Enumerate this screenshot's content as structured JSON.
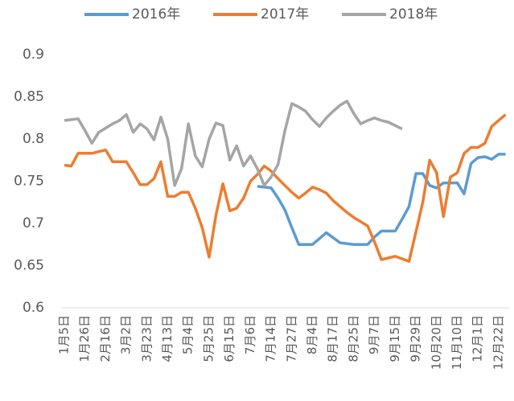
{
  "chart_data": {
    "type": "line",
    "categories": [
      "1月5日",
      null,
      null,
      "1月26日",
      null,
      null,
      "2月16日",
      null,
      null,
      "3月2日",
      null,
      null,
      "3月23日",
      null,
      null,
      "4月13日",
      null,
      null,
      "5月4日",
      null,
      null,
      "5月25日",
      null,
      null,
      "6月15日",
      null,
      null,
      "7月6日",
      null,
      null,
      "7月14日",
      null,
      null,
      "7月27日",
      null,
      null,
      "8月4日",
      null,
      null,
      "8月17日",
      null,
      null,
      "8月25日",
      null,
      null,
      "9月7日",
      null,
      null,
      "9月15日",
      null,
      null,
      "9月29日",
      null,
      null,
      "10月20日",
      null,
      null,
      "11月10日",
      null,
      null,
      "12月1日",
      null,
      null,
      "12月22日",
      null
    ],
    "series": [
      {
        "name": "2016年",
        "color": "#5b9bd5",
        "values": [
          null,
          null,
          null,
          null,
          null,
          null,
          null,
          null,
          null,
          null,
          null,
          null,
          null,
          null,
          null,
          null,
          null,
          null,
          null,
          null,
          null,
          null,
          null,
          null,
          null,
          null,
          null,
          null,
          0.744,
          0.743,
          0.742,
          0.73,
          0.716,
          0.695,
          0.675,
          0.675,
          0.675,
          0.682,
          0.689,
          0.683,
          0.677,
          0.676,
          0.675,
          0.675,
          0.675,
          0.684,
          0.691,
          0.691,
          0.691,
          0.705,
          0.72,
          0.759,
          0.759,
          0.745,
          0.742,
          0.748,
          0.748,
          0.748,
          0.735,
          0.771,
          0.778,
          0.779,
          0.776,
          0.782,
          0.782
        ]
      },
      {
        "name": "2017年",
        "color": "#ed7d31",
        "values": [
          0.769,
          0.768,
          0.783,
          0.783,
          0.783,
          0.785,
          0.787,
          0.773,
          0.773,
          0.773,
          0.76,
          0.746,
          0.746,
          0.753,
          0.773,
          0.732,
          0.732,
          0.737,
          0.737,
          0.718,
          0.695,
          0.66,
          0.71,
          0.747,
          0.715,
          0.718,
          0.73,
          0.75,
          0.758,
          0.768,
          0.762,
          0.753,
          0.745,
          0.737,
          0.73,
          0.736,
          0.743,
          0.74,
          0.736,
          0.727,
          0.72,
          0.713,
          0.707,
          0.702,
          0.697,
          0.678,
          0.657,
          0.659,
          0.661,
          0.658,
          0.655,
          0.69,
          0.725,
          0.775,
          0.76,
          0.708,
          0.755,
          0.76,
          0.783,
          0.79,
          0.79,
          0.795,
          0.815,
          0.822,
          0.829
        ]
      },
      {
        "name": "2018年",
        "color": "#a5a5a5",
        "values": [
          0.822,
          0.823,
          0.824,
          0.81,
          0.795,
          0.808,
          0.813,
          0.818,
          0.822,
          0.829,
          0.808,
          0.818,
          0.812,
          0.799,
          0.826,
          0.8,
          0.745,
          0.765,
          0.818,
          0.78,
          0.767,
          0.8,
          0.819,
          0.816,
          0.775,
          0.792,
          0.768,
          0.78,
          0.765,
          0.745,
          0.755,
          0.77,
          0.81,
          0.842,
          0.838,
          0.833,
          0.823,
          0.815,
          0.825,
          0.833,
          0.84,
          0.845,
          0.83,
          0.818,
          0.822,
          0.825,
          0.822,
          0.82,
          0.816,
          0.812,
          null,
          null,
          null,
          null,
          null,
          null,
          null,
          null,
          null,
          null,
          null,
          null,
          null,
          null,
          null
        ]
      }
    ],
    "ylim": [
      0.6,
      0.9
    ],
    "yticks": [
      0.6,
      0.65,
      0.7,
      0.75,
      0.8,
      0.85,
      0.9
    ],
    "legend": "top"
  }
}
